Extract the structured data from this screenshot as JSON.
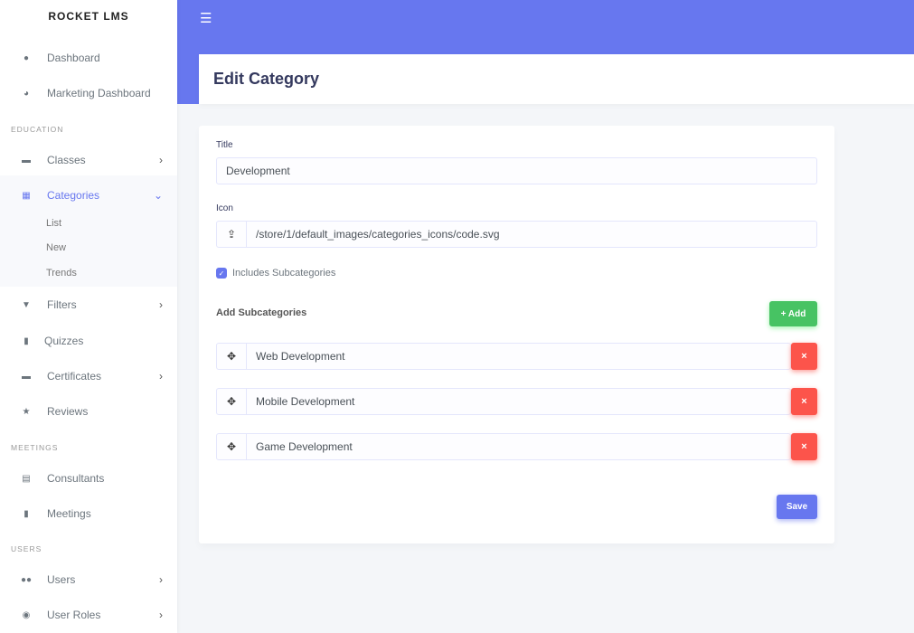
{
  "brand": "ROCKET LMS",
  "sidebar": {
    "items": [
      {
        "label": "Dashboard",
        "icon": "fire-icon"
      },
      {
        "label": "Marketing Dashboard",
        "icon": "chart-pie-icon"
      },
      {
        "label": "Classes",
        "icon": "graduation-cap-icon"
      },
      {
        "label": "Categories",
        "icon": "th-icon"
      },
      {
        "label": "Filters",
        "icon": "filter-icon"
      },
      {
        "label": "Quizzes",
        "icon": "file-icon"
      },
      {
        "label": "Certificates",
        "icon": "certificate-icon"
      },
      {
        "label": "Reviews",
        "icon": "star-icon"
      },
      {
        "label": "Consultants",
        "icon": "id-card-icon"
      },
      {
        "label": "Meetings",
        "icon": "address-book-icon"
      },
      {
        "label": "Users",
        "icon": "users-icon"
      },
      {
        "label": "User Roles",
        "icon": "user-circle-icon"
      }
    ],
    "headers": [
      "EDUCATION",
      "MEETINGS",
      "USERS"
    ],
    "categories_sub": [
      "List",
      "New",
      "Trends"
    ]
  },
  "header": {
    "title": "Edit Category"
  },
  "form": {
    "title_label": "Title",
    "title_value": "Development",
    "icon_label": "Icon",
    "icon_value": "/store/1/default_images/categories_icons/code.svg",
    "includes_sub_label": "Includes Subcategories",
    "includes_sub_checked": true,
    "add_sub_label": "Add Subcategories",
    "add_button": "+ Add",
    "subcategories": [
      "Web Development",
      "Mobile Development",
      "Game Development"
    ],
    "delete_glyph": "×",
    "save_button": "Save"
  },
  "colors": {
    "primary": "#6777ef",
    "success": "#47c363",
    "danger": "#fc544b"
  }
}
